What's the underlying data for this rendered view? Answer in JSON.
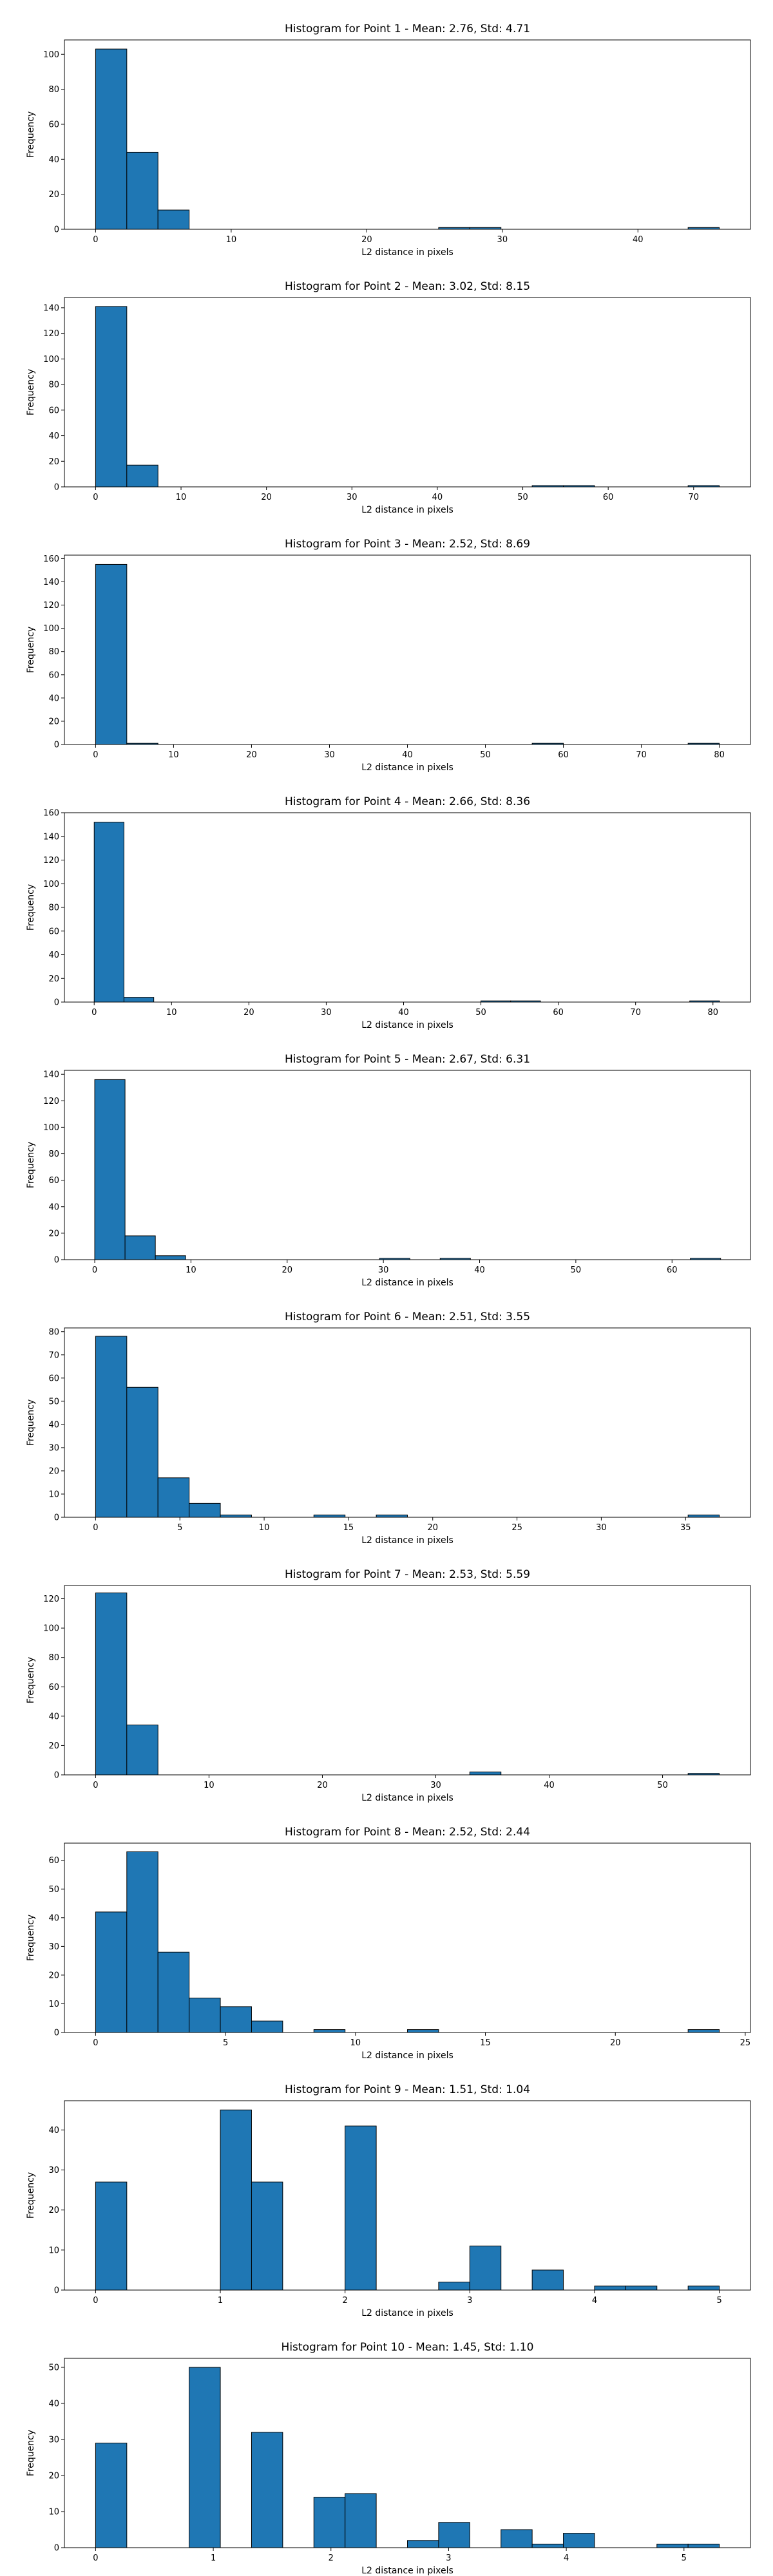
{
  "chart_data": [
    {
      "type": "bar",
      "title": "Histogram for Point 1 - Mean: 2.76, Std: 4.71",
      "xlabel": "L2 distance in pixels",
      "ylabel": "Frequency",
      "xlim": [
        -2.3,
        48.3
      ],
      "ylim": [
        0,
        108.2
      ],
      "xticks": [
        0,
        10,
        20,
        30,
        40
      ],
      "yticks": [
        0,
        20,
        40,
        60,
        80,
        100
      ],
      "bin_width": 2.3,
      "bins": [
        {
          "x0": 0.0,
          "count": 103
        },
        {
          "x0": 2.3,
          "count": 44
        },
        {
          "x0": 4.6,
          "count": 11
        },
        {
          "x0": 25.3,
          "count": 1
        },
        {
          "x0": 27.6,
          "count": 1
        },
        {
          "x0": 43.7,
          "count": 1
        }
      ],
      "bar_color": "#1f77b4"
    },
    {
      "type": "bar",
      "title": "Histogram for Point 2 - Mean: 3.02, Std: 8.15",
      "xlabel": "L2 distance in pixels",
      "ylabel": "Frequency",
      "xlim": [
        -3.65,
        76.65
      ],
      "ylim": [
        0,
        148
      ],
      "xticks": [
        0,
        10,
        20,
        30,
        40,
        50,
        60,
        70
      ],
      "yticks": [
        0,
        20,
        40,
        60,
        80,
        100,
        120,
        140
      ],
      "bin_width": 3.65,
      "bins": [
        {
          "x0": 0.0,
          "count": 141
        },
        {
          "x0": 3.65,
          "count": 17
        },
        {
          "x0": 51.1,
          "count": 1
        },
        {
          "x0": 54.75,
          "count": 1
        },
        {
          "x0": 69.35,
          "count": 1
        }
      ],
      "bar_color": "#1f77b4"
    },
    {
      "type": "bar",
      "title": "Histogram for Point 3 - Mean: 2.52, Std: 8.69",
      "xlabel": "L2 distance in pixels",
      "ylabel": "Frequency",
      "xlim": [
        -4.0,
        84.0
      ],
      "ylim": [
        0,
        163
      ],
      "xticks": [
        0,
        10,
        20,
        30,
        40,
        50,
        60,
        70,
        80
      ],
      "yticks": [
        0,
        20,
        40,
        60,
        80,
        100,
        120,
        140,
        160
      ],
      "bin_width": 4.0,
      "bins": [
        {
          "x0": 0.0,
          "count": 155
        },
        {
          "x0": 4.0,
          "count": 1
        },
        {
          "x0": 56.0,
          "count": 1
        },
        {
          "x0": 76.0,
          "count": 1
        }
      ],
      "bar_color": "#1f77b4"
    },
    {
      "type": "bar",
      "title": "Histogram for Point 4 - Mean: 2.66, Std: 8.36",
      "xlabel": "L2 distance in pixels",
      "ylabel": "Frequency",
      "xlim": [
        -3.85,
        84.85
      ],
      "ylim": [
        0,
        160
      ],
      "xticks": [
        0,
        10,
        20,
        30,
        40,
        50,
        60,
        70,
        80
      ],
      "yticks": [
        0,
        20,
        40,
        60,
        80,
        100,
        120,
        140,
        160
      ],
      "bin_width": 3.85,
      "bins": [
        {
          "x0": 0.0,
          "count": 152
        },
        {
          "x0": 3.85,
          "count": 4
        },
        {
          "x0": 50.0,
          "count": 1
        },
        {
          "x0": 53.85,
          "count": 1
        },
        {
          "x0": 77.0,
          "count": 1
        }
      ],
      "bar_color": "#1f77b4"
    },
    {
      "type": "bar",
      "title": "Histogram for Point 5 - Mean: 2.67, Std: 6.31",
      "xlabel": "L2 distance in pixels",
      "ylabel": "Frequency",
      "xlim": [
        -3.15,
        68.15
      ],
      "ylim": [
        0,
        143
      ],
      "xticks": [
        0,
        10,
        20,
        30,
        40,
        50,
        60
      ],
      "yticks": [
        0,
        20,
        40,
        60,
        80,
        100,
        120,
        140
      ],
      "bin_width": 3.15,
      "bins": [
        {
          "x0": 0.0,
          "count": 136
        },
        {
          "x0": 3.15,
          "count": 18
        },
        {
          "x0": 6.3,
          "count": 3
        },
        {
          "x0": 29.6,
          "count": 1
        },
        {
          "x0": 35.9,
          "count": 1
        },
        {
          "x0": 61.9,
          "count": 1
        }
      ],
      "bar_color": "#1f77b4"
    },
    {
      "type": "bar",
      "title": "Histogram for Point 6 - Mean: 2.51, Std: 3.55",
      "xlabel": "L2 distance in pixels",
      "ylabel": "Frequency",
      "xlim": [
        -1.85,
        38.85
      ],
      "ylim": [
        0,
        81.6
      ],
      "xticks": [
        0,
        5,
        10,
        15,
        20,
        25,
        30,
        35
      ],
      "yticks": [
        0,
        10,
        20,
        30,
        40,
        50,
        60,
        70,
        80
      ],
      "bin_width": 1.85,
      "bins": [
        {
          "x0": 0.0,
          "count": 78
        },
        {
          "x0": 1.85,
          "count": 56
        },
        {
          "x0": 3.7,
          "count": 17
        },
        {
          "x0": 5.55,
          "count": 6
        },
        {
          "x0": 7.4,
          "count": 1
        },
        {
          "x0": 12.95,
          "count": 1
        },
        {
          "x0": 16.65,
          "count": 1
        },
        {
          "x0": 35.15,
          "count": 1
        }
      ],
      "bar_color": "#1f77b4"
    },
    {
      "type": "bar",
      "title": "Histogram for Point 7 - Mean: 2.53, Std: 5.59",
      "xlabel": "L2 distance in pixels",
      "ylabel": "Frequency",
      "xlim": [
        -2.75,
        57.75
      ],
      "ylim": [
        0,
        129
      ],
      "xticks": [
        0,
        10,
        20,
        30,
        40,
        50
      ],
      "yticks": [
        0,
        20,
        40,
        60,
        80,
        100,
        120
      ],
      "bin_width": 2.75,
      "bins": [
        {
          "x0": 0.0,
          "count": 124
        },
        {
          "x0": 2.75,
          "count": 34
        },
        {
          "x0": 33.0,
          "count": 2
        },
        {
          "x0": 52.25,
          "count": 1
        }
      ],
      "bar_color": "#1f77b4"
    },
    {
      "type": "bar",
      "title": "Histogram for Point 8 - Mean: 2.52, Std: 2.44",
      "xlabel": "L2 distance in pixels",
      "ylabel": "Frequency",
      "xlim": [
        -1.2,
        25.2
      ],
      "ylim": [
        0,
        66
      ],
      "xticks": [
        0,
        5,
        10,
        15,
        20,
        25
      ],
      "yticks": [
        0,
        10,
        20,
        30,
        40,
        50,
        60
      ],
      "bin_width": 1.2,
      "bins": [
        {
          "x0": 0.0,
          "count": 42
        },
        {
          "x0": 1.2,
          "count": 63
        },
        {
          "x0": 2.4,
          "count": 28
        },
        {
          "x0": 3.6,
          "count": 12
        },
        {
          "x0": 4.8,
          "count": 9
        },
        {
          "x0": 6.0,
          "count": 4
        },
        {
          "x0": 8.4,
          "count": 1
        },
        {
          "x0": 12.0,
          "count": 1
        },
        {
          "x0": 22.8,
          "count": 1
        }
      ],
      "bar_color": "#1f77b4"
    },
    {
      "type": "bar",
      "title": "Histogram for Point 9 - Mean: 1.51, Std: 1.04",
      "xlabel": "L2 distance in pixels",
      "ylabel": "Frequency",
      "xlim": [
        -0.25,
        5.25
      ],
      "ylim": [
        0,
        47.3
      ],
      "xticks": [
        0,
        1,
        2,
        3,
        4,
        5
      ],
      "yticks": [
        0,
        10,
        20,
        30,
        40
      ],
      "bin_width": 0.25,
      "bins": [
        {
          "x0": 0.0,
          "count": 27
        },
        {
          "x0": 1.0,
          "count": 45
        },
        {
          "x0": 1.25,
          "count": 27
        },
        {
          "x0": 2.0,
          "count": 41
        },
        {
          "x0": 2.75,
          "count": 2
        },
        {
          "x0": 3.0,
          "count": 11
        },
        {
          "x0": 3.5,
          "count": 5
        },
        {
          "x0": 4.0,
          "count": 1
        },
        {
          "x0": 4.25,
          "count": 1
        },
        {
          "x0": 4.75,
          "count": 1
        }
      ],
      "bar_color": "#1f77b4"
    },
    {
      "type": "bar",
      "title": "Histogram for Point 10 - Mean: 1.45, Std: 1.10",
      "xlabel": "L2 distance in pixels",
      "ylabel": "Frequency",
      "xlim": [
        -0.265,
        5.565
      ],
      "ylim": [
        0,
        52.5
      ],
      "xticks": [
        0,
        1,
        2,
        3,
        4,
        5
      ],
      "yticks": [
        0,
        10,
        20,
        30,
        40,
        50
      ],
      "bin_width": 0.265,
      "bins": [
        {
          "x0": 0.0,
          "count": 29
        },
        {
          "x0": 0.795,
          "count": 50
        },
        {
          "x0": 1.325,
          "count": 32
        },
        {
          "x0": 1.855,
          "count": 14
        },
        {
          "x0": 2.12,
          "count": 15
        },
        {
          "x0": 2.65,
          "count": 2
        },
        {
          "x0": 2.915,
          "count": 7
        },
        {
          "x0": 3.445,
          "count": 5
        },
        {
          "x0": 3.71,
          "count": 1
        },
        {
          "x0": 3.975,
          "count": 4
        },
        {
          "x0": 4.77,
          "count": 1
        },
        {
          "x0": 5.035,
          "count": 1
        }
      ],
      "bar_color": "#1f77b4"
    }
  ]
}
